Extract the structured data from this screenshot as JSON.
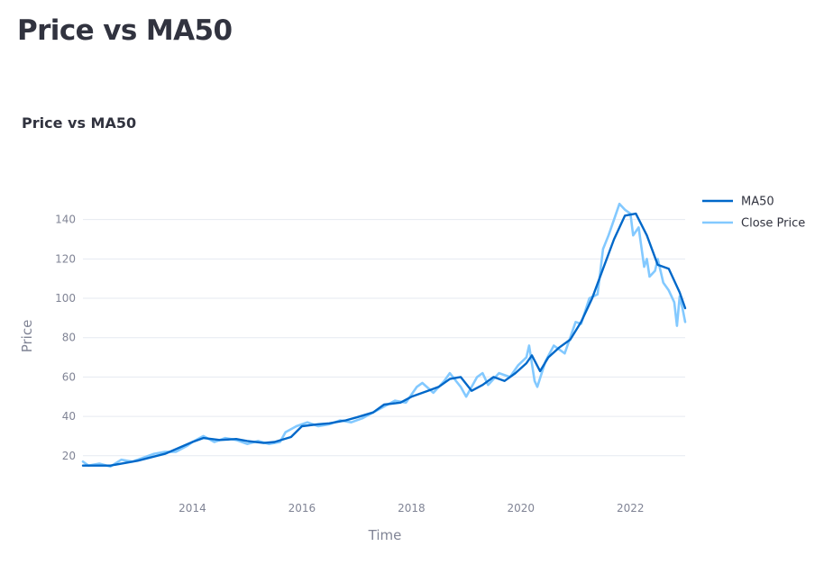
{
  "page": {
    "title": "Price vs MA50"
  },
  "chart_data": {
    "type": "line",
    "title": "Price vs MA50",
    "xlabel": "Time",
    "ylabel": "Price",
    "xlim": [
      2012.0,
      2023.0
    ],
    "ylim": [
      8,
      160
    ],
    "x_ticks": [
      2014,
      2016,
      2018,
      2020,
      2022
    ],
    "y_ticks": [
      20,
      40,
      60,
      80,
      100,
      120,
      140
    ],
    "grid": true,
    "legend_position": "top-right",
    "series": [
      {
        "name": "MA50",
        "color": "#0068c9",
        "x": [
          2012.0,
          2012.5,
          2013.0,
          2013.5,
          2014.0,
          2014.2,
          2014.5,
          2014.8,
          2015.0,
          2015.3,
          2015.5,
          2015.8,
          2016.0,
          2016.3,
          2016.5,
          2016.8,
          2017.0,
          2017.3,
          2017.5,
          2017.8,
          2018.0,
          2018.3,
          2018.5,
          2018.7,
          2018.9,
          2019.1,
          2019.3,
          2019.5,
          2019.7,
          2019.9,
          2020.1,
          2020.2,
          2020.35,
          2020.5,
          2020.7,
          2020.9,
          2021.1,
          2021.3,
          2021.5,
          2021.7,
          2021.9,
          2022.1,
          2022.3,
          2022.5,
          2022.7,
          2022.9,
          2023.0
        ],
        "y": [
          15,
          15,
          17.5,
          21,
          27,
          29,
          28,
          28.5,
          27.5,
          26.5,
          27,
          29.5,
          35,
          36,
          36.5,
          38,
          39.5,
          42,
          46,
          47,
          50,
          53,
          55,
          59,
          60,
          53,
          56,
          60,
          58,
          62,
          67,
          71,
          63,
          70,
          75,
          79,
          88,
          100,
          115,
          130,
          142,
          143,
          132,
          117,
          115,
          103,
          95
        ]
      },
      {
        "name": "Close Price",
        "color": "#83c9ff",
        "x": [
          2012.0,
          2012.1,
          2012.3,
          2012.5,
          2012.7,
          2012.9,
          2013.1,
          2013.3,
          2013.5,
          2013.7,
          2013.9,
          2014.0,
          2014.2,
          2014.4,
          2014.6,
          2014.8,
          2015.0,
          2015.2,
          2015.4,
          2015.6,
          2015.7,
          2015.9,
          2016.1,
          2016.3,
          2016.5,
          2016.7,
          2016.9,
          2017.1,
          2017.3,
          2017.5,
          2017.7,
          2017.9,
          2018.1,
          2018.2,
          2018.4,
          2018.6,
          2018.7,
          2018.9,
          2019.0,
          2019.2,
          2019.3,
          2019.4,
          2019.6,
          2019.8,
          2019.95,
          2020.1,
          2020.15,
          2020.25,
          2020.3,
          2020.45,
          2020.6,
          2020.8,
          2020.9,
          2021.0,
          2021.1,
          2021.25,
          2021.4,
          2021.5,
          2021.6,
          2021.7,
          2021.8,
          2021.9,
          2022.0,
          2022.05,
          2022.15,
          2022.25,
          2022.3,
          2022.35,
          2022.45,
          2022.5,
          2022.6,
          2022.7,
          2022.8,
          2022.85,
          2022.9,
          2022.95,
          2023.0
        ],
        "y": [
          17,
          15,
          16,
          14.5,
          18,
          17,
          19,
          21,
          22,
          22,
          25,
          27,
          30,
          27,
          29,
          28,
          26,
          27.5,
          26,
          27,
          32,
          35,
          37,
          35,
          36,
          38,
          37,
          39,
          42,
          45,
          48,
          47,
          55,
          57,
          52,
          58,
          62,
          55,
          50,
          60,
          62,
          56,
          62,
          60,
          66,
          70,
          76,
          58,
          55,
          68,
          76,
          72,
          80,
          88,
          87,
          100,
          102,
          125,
          132,
          140,
          148,
          145,
          143,
          132,
          136,
          116,
          120,
          111,
          114,
          120,
          108,
          104,
          98,
          86,
          101,
          95,
          88
        ]
      }
    ]
  }
}
